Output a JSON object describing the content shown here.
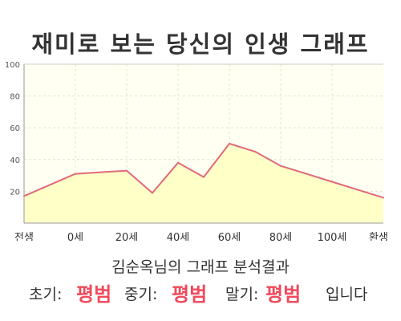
{
  "title": "재미로 보는 당신의 인생 그래프",
  "summary": "김순옥님의 그래프 분석결과",
  "result": {
    "early_label": "초기:",
    "early_value": "평범",
    "middle_label": "중기:",
    "middle_value": "평범",
    "late_label": "말기:",
    "late_value": "평범",
    "suffix": "입니다"
  },
  "colors": {
    "line": "#e06a7a",
    "fill": "#ffffc8",
    "plot_bg": "#fffff2",
    "grid": "#e4e4cc",
    "result_value": "#f04a5c"
  },
  "chart_data": {
    "type": "area",
    "title": "",
    "xlabel": "",
    "ylabel": "",
    "x_tick_labels": [
      "전생",
      "0세",
      "20세",
      "40세",
      "60세",
      "80세",
      "100세",
      "환생"
    ],
    "y_ticks": [
      20,
      40,
      60,
      80,
      100
    ],
    "ylim": [
      0,
      100
    ],
    "xlim": [
      -20,
      120
    ],
    "grid": true,
    "series": [
      {
        "x": [
          -20,
          0,
          10,
          20,
          30,
          40,
          50,
          60,
          70,
          80,
          90,
          100,
          110,
          120
        ],
        "values": [
          17,
          31,
          32,
          33,
          19,
          38,
          29,
          50,
          45,
          36,
          31,
          26,
          21,
          16
        ]
      }
    ]
  }
}
